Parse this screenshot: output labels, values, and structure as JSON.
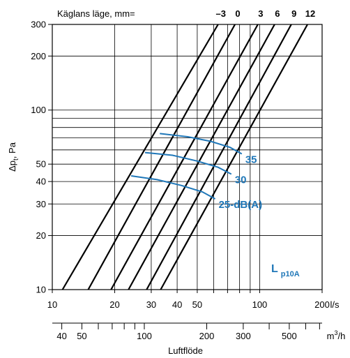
{
  "chart_data": {
    "type": "line",
    "title": "Käglans läge, mm=",
    "ylabel": "Δp_t, Pa",
    "ylabel_parts": {
      "main": "Δp",
      "sub": "t",
      "rest": ", Pa"
    },
    "xlabel": "Luftflöde",
    "x_scale": "log",
    "y_scale": "log",
    "xlim": [
      10,
      200
    ],
    "ylim": [
      10,
      300
    ],
    "x_unit": "l/s",
    "x2_unit": "m³/h",
    "x2_unit_parts": {
      "main": "m",
      "sup": "3",
      "rest": "/h"
    },
    "x_ticks": [
      {
        "value": 10,
        "label": "10"
      },
      {
        "value": 20,
        "label": "20"
      },
      {
        "value": 30,
        "label": "30"
      },
      {
        "value": 40,
        "label": "40"
      },
      {
        "value": 50,
        "label": "50"
      },
      {
        "value": 100,
        "label": "100"
      },
      {
        "value": 200,
        "label": "200"
      }
    ],
    "x2_ticks": [
      {
        "value": 40,
        "label": "40"
      },
      {
        "value": 50,
        "label": "50"
      },
      {
        "value": 100,
        "label": "100"
      },
      {
        "value": 200,
        "label": "200"
      },
      {
        "value": 300,
        "label": "300"
      },
      {
        "value": 500,
        "label": "500"
      }
    ],
    "y_ticks": [
      {
        "value": 10,
        "label": "10"
      },
      {
        "value": 20,
        "label": "20"
      },
      {
        "value": 30,
        "label": "30"
      },
      {
        "value": 40,
        "label": "40"
      },
      {
        "value": 50,
        "label": "50"
      },
      {
        "value": 100,
        "label": "100"
      },
      {
        "value": 200,
        "label": "200"
      },
      {
        "value": 300,
        "label": "300"
      }
    ],
    "grid": true,
    "series": [
      {
        "name": "–3",
        "x": [
          11.2,
          63
        ],
        "y": [
          10,
          300
        ]
      },
      {
        "name": "0",
        "x": [
          14.9,
          76
        ],
        "y": [
          10,
          300
        ]
      },
      {
        "name": "3",
        "x": [
          19.2,
          98
        ],
        "y": [
          10,
          300
        ]
      },
      {
        "name": "6",
        "x": [
          23.3,
          118
        ],
        "y": [
          10,
          300
        ]
      },
      {
        "name": "9",
        "x": [
          28.5,
          142
        ],
        "y": [
          10,
          300
        ]
      },
      {
        "name": "12",
        "x": [
          33.3,
          170
        ],
        "y": [
          10,
          300
        ]
      }
    ],
    "noise_curves": [
      {
        "label": "35",
        "x": [
          33,
          45,
          58,
          72,
          82
        ],
        "y": [
          74,
          71,
          67,
          62,
          57
        ]
      },
      {
        "label": "30",
        "x": [
          28,
          38,
          50,
          63,
          73
        ],
        "y": [
          58,
          56,
          52,
          48,
          44
        ]
      },
      {
        "label": "25",
        "x": [
          24,
          32,
          42,
          53,
          61
        ],
        "y": [
          43,
          41,
          38,
          35,
          32
        ]
      }
    ],
    "noise_unit": "dB(A)",
    "noise_label_separator": "-",
    "noise_parameter": {
      "main": "L",
      "sub": "p10A"
    },
    "colors": {
      "lines": "#000000",
      "noise": "#1f77b8",
      "grid": "#000000"
    }
  }
}
